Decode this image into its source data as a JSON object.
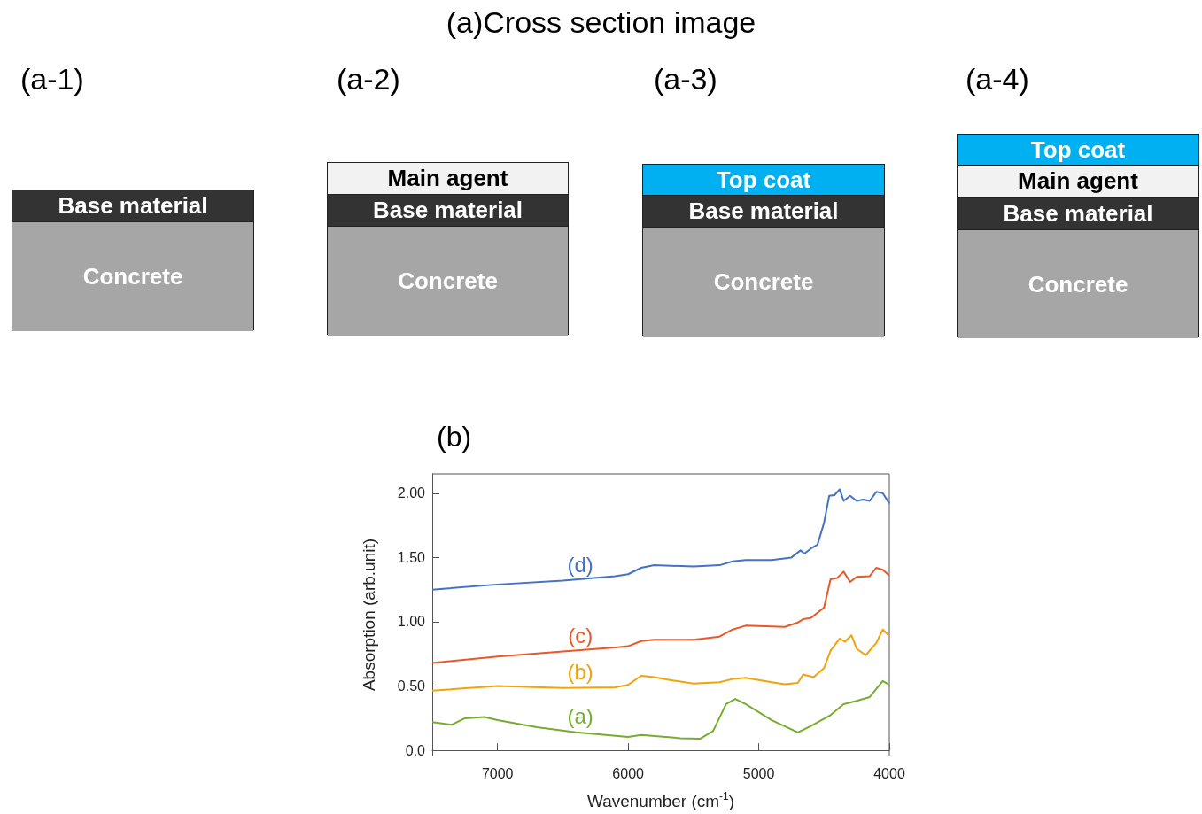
{
  "chart_data": [
    {
      "type": "other",
      "title": "(a)Cross section image",
      "annotations": [
        "(a-1)",
        "(a-2)",
        "(a-3)",
        "(a-4)",
        "Base material",
        "Concrete",
        "Main agent",
        "Base material",
        "Concrete",
        "Top coat",
        "Base material",
        "Concrete",
        "Top coat",
        "Main agent",
        "Base material",
        "Concrete"
      ]
    },
    {
      "type": "line",
      "title": "(b)",
      "xlabel": "Wavenumber (cm$^{-1}$)",
      "ylabel": "Absorption (arb.unit)",
      "xlim": [
        7500,
        4000
      ],
      "xticks": [
        7000,
        6000,
        5000,
        4000
      ],
      "ylim": [
        -0.04,
        2.15
      ],
      "yticks": [
        {
          "value": 0,
          "label": "0.0"
        },
        {
          "value": 0.5,
          "label": "0.50"
        },
        {
          "value": 1,
          "label": "1.00"
        },
        {
          "value": 1.5,
          "label": "1.50"
        },
        {
          "value": 2,
          "label": "2.00"
        }
      ],
      "grid": false,
      "legend": false,
      "marker": "none",
      "line_style": "solid",
      "series": [
        {
          "name": "(d)",
          "color": "#4472c4",
          "x": [
            7500,
            7000,
            6500,
            6100,
            6000,
            5900,
            5800,
            5500,
            5300,
            5200,
            5100,
            4900,
            4750,
            4680,
            4650,
            4600,
            4550,
            4500,
            4460,
            4420,
            4380,
            4350,
            4300,
            4250,
            4200,
            4150,
            4100,
            4050,
            4000
          ],
          "values": [
            1.25,
            1.29,
            1.32,
            1.355,
            1.37,
            1.42,
            1.44,
            1.43,
            1.44,
            1.47,
            1.48,
            1.48,
            1.5,
            1.555,
            1.53,
            1.57,
            1.6,
            1.77,
            1.98,
            1.985,
            2.03,
            1.94,
            1.98,
            1.94,
            1.95,
            1.94,
            2.01,
            2.0,
            1.92
          ]
        },
        {
          "name": "(c)",
          "color": "#e8582a",
          "x": [
            7500,
            7000,
            6500,
            6100,
            6000,
            5900,
            5800,
            5500,
            5300,
            5200,
            5100,
            4800,
            4700,
            4660,
            4600,
            4500,
            4450,
            4400,
            4350,
            4300,
            4250,
            4150,
            4100,
            4050,
            4000
          ],
          "values": [
            0.68,
            0.73,
            0.77,
            0.8,
            0.81,
            0.85,
            0.86,
            0.86,
            0.885,
            0.94,
            0.97,
            0.96,
            0.995,
            1.02,
            1.03,
            1.11,
            1.33,
            1.34,
            1.39,
            1.31,
            1.35,
            1.355,
            1.42,
            1.405,
            1.36
          ]
        },
        {
          "name": "(b)",
          "color": "#f0a30a",
          "x": [
            7500,
            7000,
            6500,
            6100,
            6000,
            5900,
            5800,
            5700,
            5500,
            5300,
            5200,
            5100,
            4900,
            4800,
            4700,
            4660,
            4620,
            4580,
            4500,
            4450,
            4380,
            4340,
            4290,
            4250,
            4180,
            4100,
            4050,
            4000
          ],
          "values": [
            0.465,
            0.5,
            0.485,
            0.49,
            0.51,
            0.58,
            0.57,
            0.55,
            0.52,
            0.53,
            0.555,
            0.565,
            0.53,
            0.515,
            0.525,
            0.59,
            0.58,
            0.57,
            0.64,
            0.775,
            0.87,
            0.845,
            0.895,
            0.79,
            0.74,
            0.835,
            0.94,
            0.89
          ]
        },
        {
          "name": "(a)",
          "color": "#77ac30",
          "x": [
            7500,
            7350,
            7250,
            7100,
            7000,
            6700,
            6400,
            6000,
            5900,
            5600,
            5450,
            5350,
            5250,
            5180,
            5100,
            4900,
            4700,
            4600,
            4450,
            4350,
            4250,
            4150,
            4050,
            4000
          ],
          "values": [
            0.22,
            0.2,
            0.25,
            0.26,
            0.235,
            0.18,
            0.14,
            0.105,
            0.12,
            0.095,
            0.09,
            0.15,
            0.36,
            0.4,
            0.36,
            0.235,
            0.14,
            0.19,
            0.275,
            0.36,
            0.385,
            0.415,
            0.54,
            0.51
          ]
        }
      ]
    }
  ]
}
